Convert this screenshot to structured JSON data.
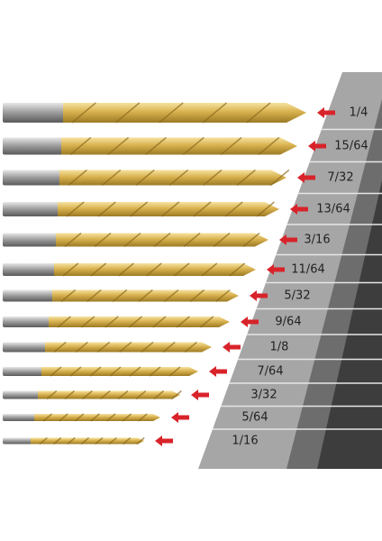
{
  "labels": [
    "1/4",
    "15/64",
    "7/32",
    "13/64",
    "3/16",
    "11/64",
    "5/32",
    "9/64",
    "1/8",
    "7/64",
    "3/32",
    "5/64",
    "1/16"
  ]
}
